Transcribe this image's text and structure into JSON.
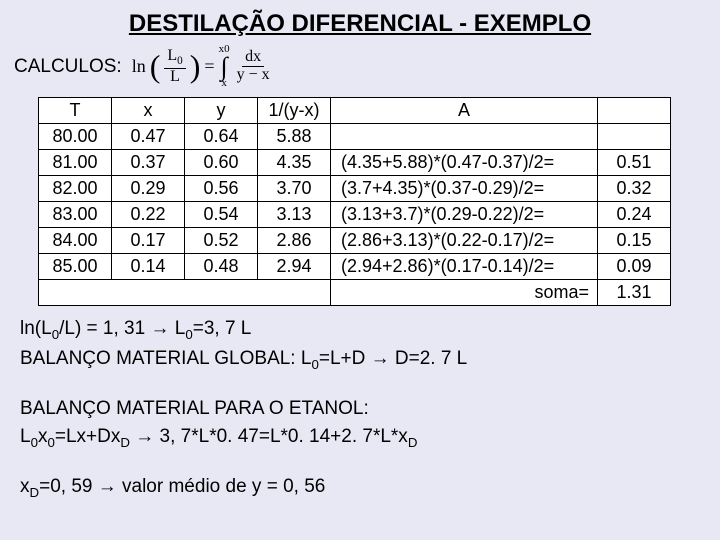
{
  "title": "DESTILAÇÃO DIFERENCIAL - EXEMPLO",
  "calc_label": "CALCULOS:",
  "formula": {
    "ln": "ln",
    "L0": "L",
    "L0_sub": "0",
    "L": "L",
    "eq": "=",
    "int_top": "x0",
    "int_bot": "x",
    "dx": "dx",
    "denom": "y − x"
  },
  "table": {
    "headers": [
      "T",
      "x",
      "y",
      "1/(y-x)",
      "A",
      ""
    ],
    "rows": [
      [
        "80.00",
        "0.47",
        "0.64",
        "5.88",
        "",
        ""
      ],
      [
        "81.00",
        "0.37",
        "0.60",
        "4.35",
        "(4.35+5.88)*(0.47-0.37)/2=",
        "0.51"
      ],
      [
        "82.00",
        "0.29",
        "0.56",
        "3.70",
        "(3.7+4.35)*(0.37-0.29)/2=",
        "0.32"
      ],
      [
        "83.00",
        "0.22",
        "0.54",
        "3.13",
        "(3.13+3.7)*(0.29-0.22)/2=",
        "0.24"
      ],
      [
        "84.00",
        "0.17",
        "0.52",
        "2.86",
        "(2.86+3.13)*(0.22-0.17)/2=",
        "0.15"
      ],
      [
        "85.00",
        "0.14",
        "0.48",
        "2.94",
        "(2.94+2.86)*(0.17-0.14)/2=",
        "0.09"
      ]
    ],
    "soma_label": "soma=",
    "soma_value": "1.31"
  },
  "lines": {
    "l1a": "ln(L",
    "l1b": "/L) = 1, 31   →      L",
    "l1c": "=3, 7 L",
    "l2a": "BALANÇO MATERIAL GLOBAL: L",
    "l2b": "=L+D → D=2. 7 L",
    "l3": "BALANÇO MATERIAL PARA O ETANOL:",
    "l4a": "L",
    "l4b": "x",
    "l4c": "=Lx+Dx",
    "l4d": " → 3, 7*L*0. 47=L*0. 14+2. 7*L*x",
    "l5a": "x",
    "l5b": "=0, 59 → valor médio de y = 0, 56"
  }
}
